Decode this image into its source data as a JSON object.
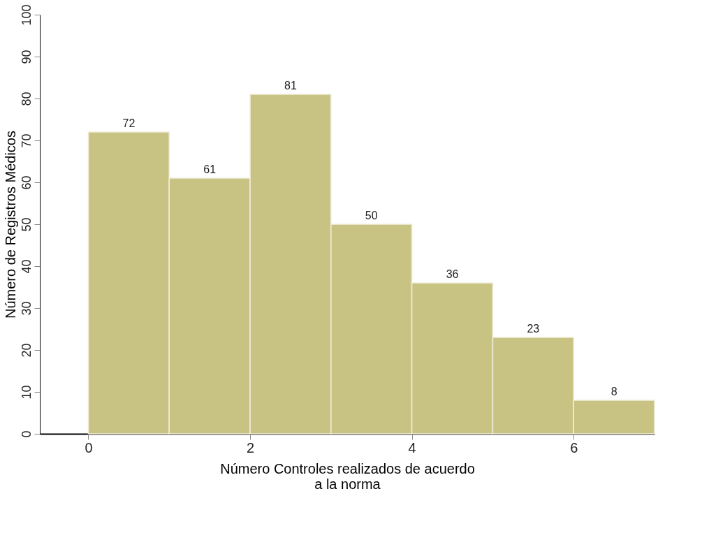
{
  "chart_data": {
    "type": "histogram",
    "xlabel": "Número Controles realizados de acuerdo\na la norma",
    "ylabel": "Número de Registros Médicos",
    "bins": [
      0,
      1,
      2,
      3,
      4,
      5,
      6,
      7
    ],
    "values": [
      72,
      61,
      81,
      50,
      36,
      23,
      8
    ],
    "color": "#c9c383",
    "xlim": [
      -0.6,
      7
    ],
    "xticks": [
      0,
      2,
      4,
      6
    ],
    "ylim": [
      0,
      100
    ],
    "yticks": [
      0,
      10,
      20,
      30,
      40,
      50,
      60,
      70,
      80,
      90,
      100
    ],
    "data_labels": true,
    "grid": false
  }
}
